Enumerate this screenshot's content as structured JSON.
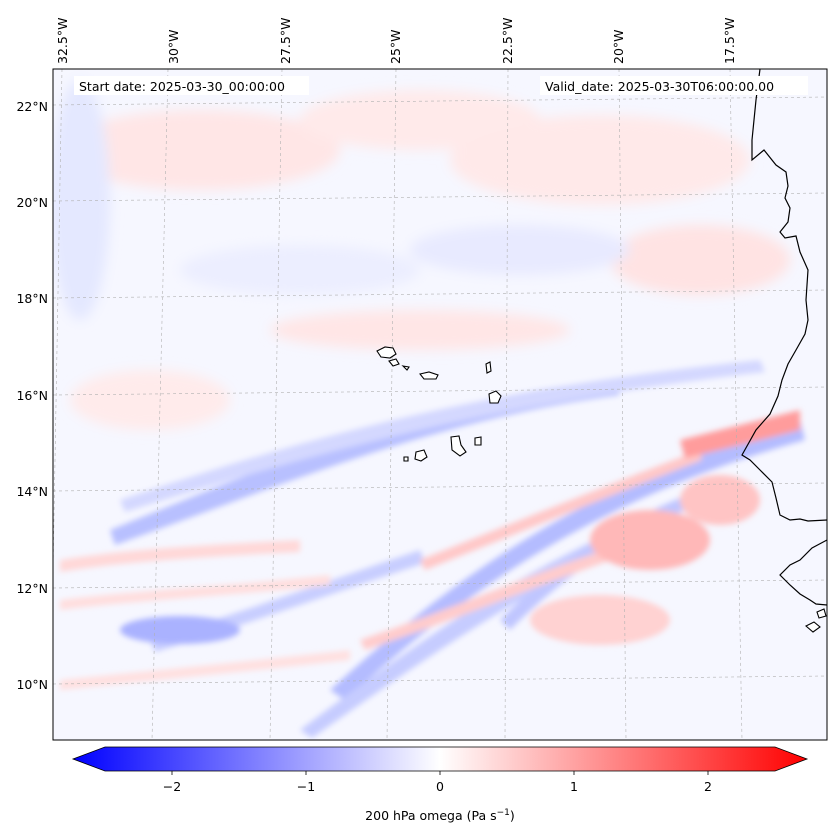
{
  "map": {
    "header": {
      "start_date": "Start date: 2025-03-30_00:00:00",
      "valid_date": "Valid_date: 2025-03-30T06:00:00.00"
    },
    "lon_labels": [
      "32.5°W",
      "30°W",
      "27.5°W",
      "25°W",
      "22.5°W",
      "20°W",
      "17.5°W"
    ],
    "lat_labels": [
      "22°N",
      "20°N",
      "18°N",
      "16°N",
      "14°N",
      "12°N",
      "10°N"
    ],
    "field": {
      "variable": "200 hPa omega",
      "units": "Pa s",
      "units_exponent": "−1",
      "vmin": -2.5,
      "vmax": 2.5,
      "colormap": "bwr",
      "low_color": "#0000ff",
      "mid_color": "#ffffff",
      "high_color": "#ff0000"
    },
    "colorbar": {
      "ticks": [
        "−2",
        "−1",
        "0",
        "1",
        "2"
      ],
      "tick_values": [
        -2,
        -1,
        0,
        1,
        2
      ]
    },
    "features": [
      "coastline-west-africa",
      "cape-verde-islands"
    ]
  }
}
